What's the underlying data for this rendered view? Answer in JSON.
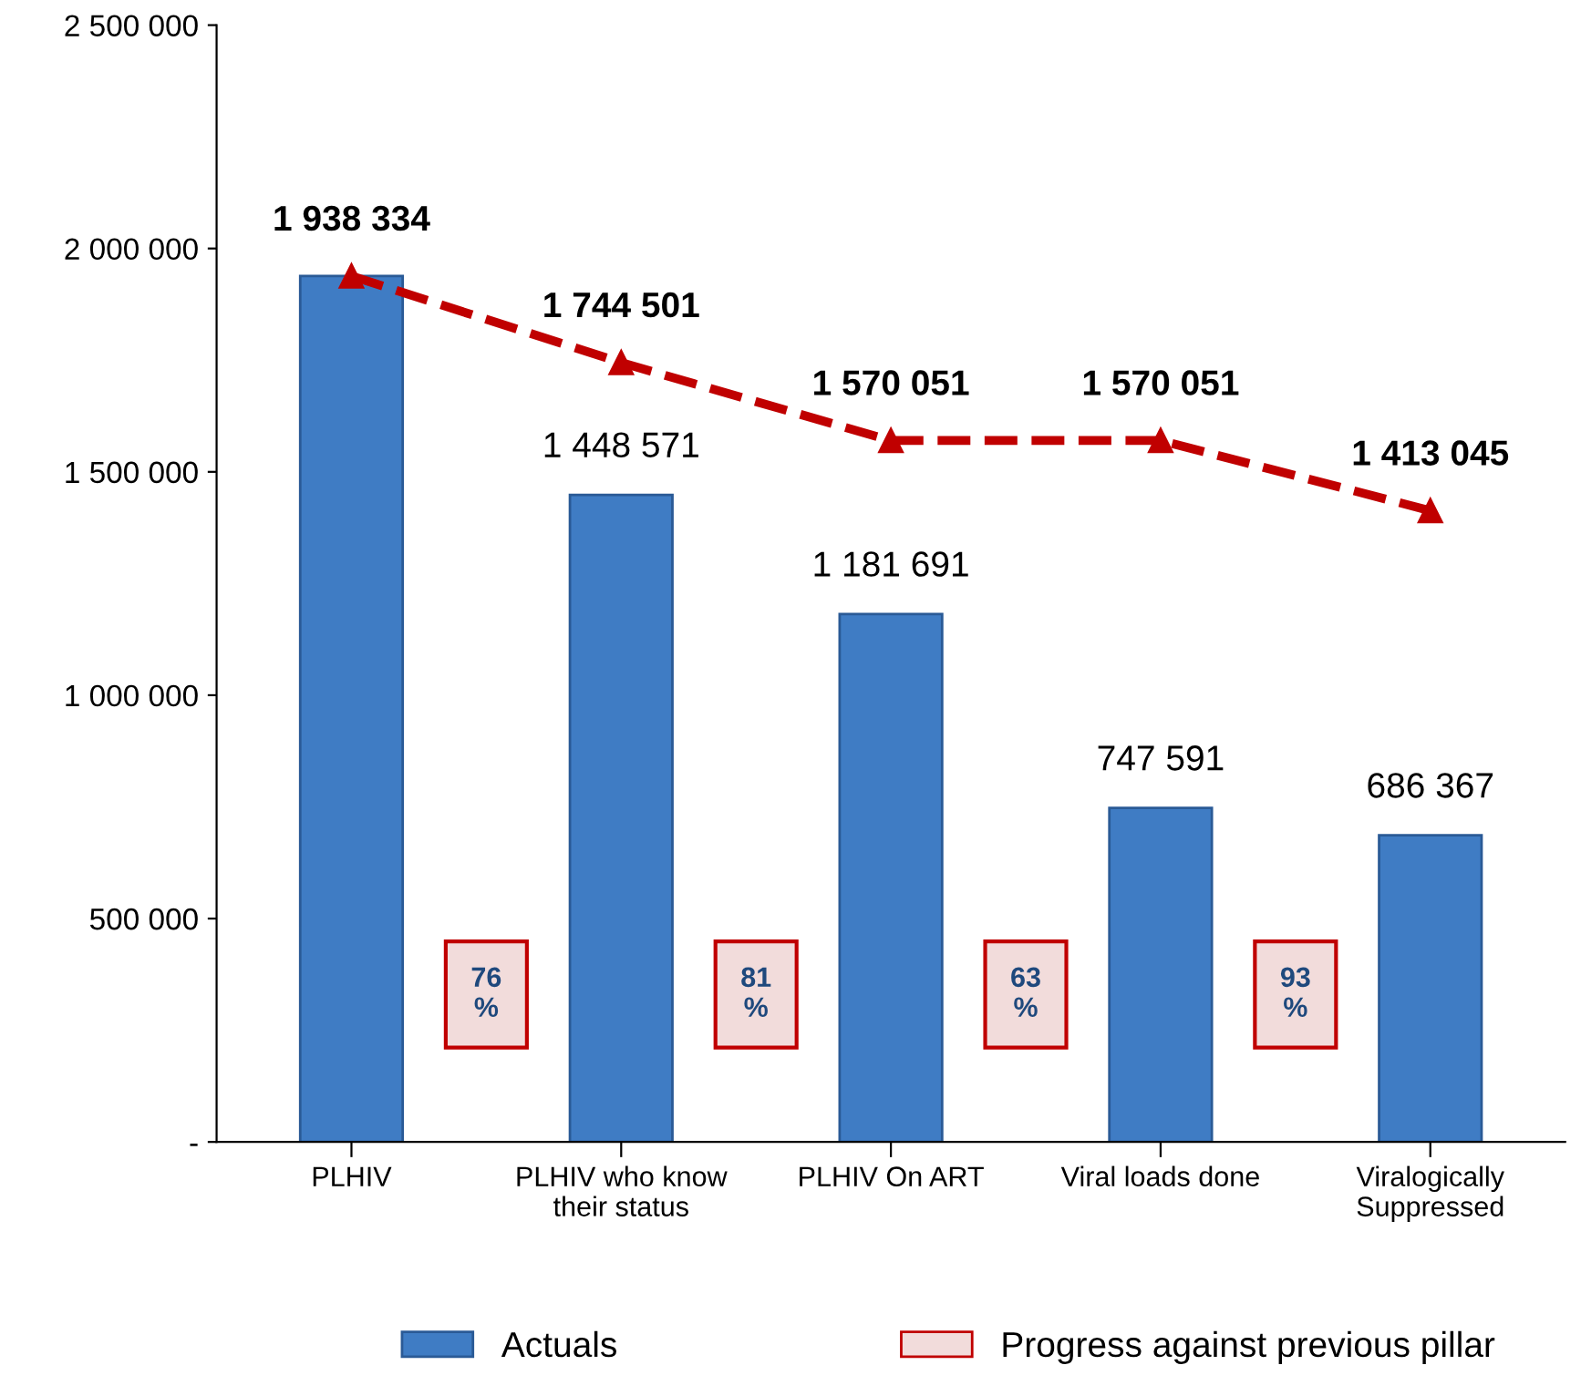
{
  "chart_data": {
    "type": "bar",
    "categories": [
      "PLHIV",
      "PLHIV who know\ntheir status",
      "PLHIV On ART",
      "Viral loads done",
      "Viralogically\nSuppressed"
    ],
    "series": [
      {
        "name": "Actuals",
        "color": "#3f7cc4",
        "values": [
          1938334,
          1448571,
          1181691,
          747591,
          686367
        ],
        "value_labels": [
          null,
          "1 448 571",
          "1 181 691",
          "747 591",
          "686 367"
        ]
      },
      {
        "type": "line",
        "color": "#c00000",
        "marker": "triangle",
        "line_style": "dashed",
        "values": [
          1938334,
          1744501,
          1570051,
          1570051,
          1413045
        ],
        "value_labels": [
          "1 938 334",
          "1 744 501",
          "1 570 051",
          "1 570 051",
          "1 413 045"
        ]
      }
    ],
    "ylim": [
      0,
      2500000
    ],
    "yticks": [
      {
        "value": 0,
        "label": "-"
      },
      {
        "value": 500000,
        "label": "500 000"
      },
      {
        "value": 1000000,
        "label": "1 000 000"
      },
      {
        "value": 1500000,
        "label": "1 500 000"
      },
      {
        "value": 2000000,
        "label": "2 000 000"
      },
      {
        "value": 2500000,
        "label": "2 500 000"
      }
    ],
    "grid": false,
    "legend": "bottom",
    "annotations": [
      "76\n%",
      "81\n%",
      "63\n%",
      "93\n%",
      "Progress against previous pillar"
    ]
  }
}
